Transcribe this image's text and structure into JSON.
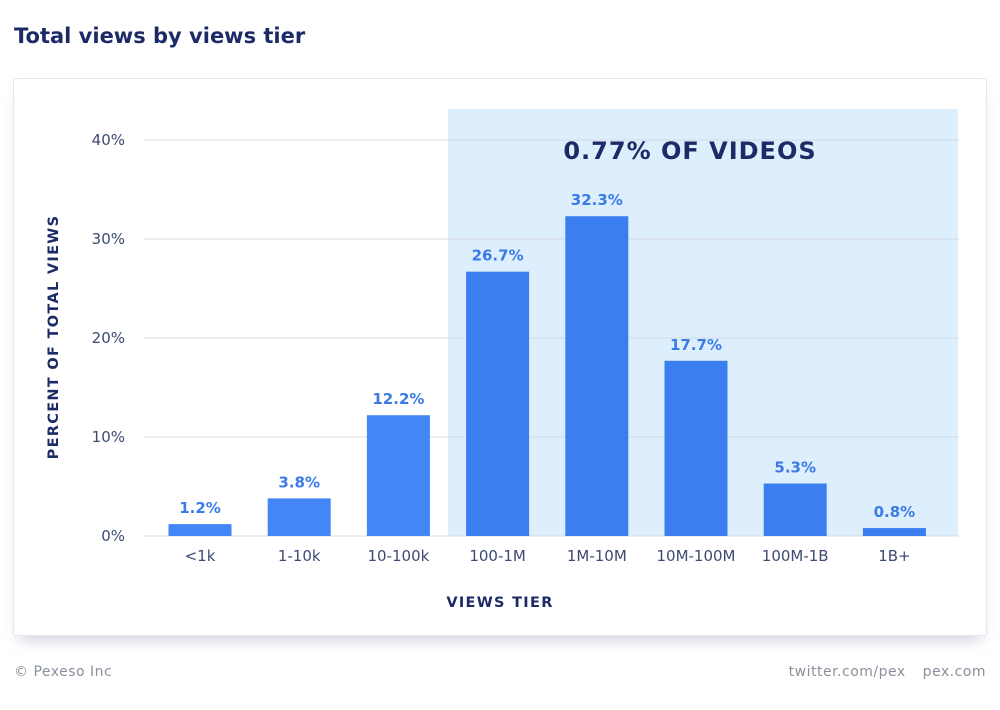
{
  "header": {
    "title": "Total views by views tier"
  },
  "footer": {
    "copyright": "© Pexeso Inc",
    "twitter": "twitter.com/pex",
    "site": "pex.com"
  },
  "colors": {
    "bar": "#4287f5",
    "bar_highlight": "#3b7ef0",
    "highlight_region": "#ddeefc",
    "data_label": "#3b7be8",
    "axis_text": "#3d4a73",
    "title_text": "#1c2a66",
    "grid": "#d7dbe3"
  },
  "chart_data": {
    "type": "bar",
    "categories": [
      "<1k",
      "1-10k",
      "10-100k",
      "100-1M",
      "1M-10M",
      "10M-100M",
      "100M-1B",
      "1B+"
    ],
    "values": [
      1.2,
      3.8,
      12.2,
      26.7,
      32.3,
      17.7,
      5.3,
      0.8
    ],
    "value_labels": [
      "1.2%",
      "3.8%",
      "12.2%",
      "26.7%",
      "32.3%",
      "17.7%",
      "5.3%",
      "0.8%"
    ],
    "xlabel": "VIEWS TIER",
    "ylabel": "PERCENT OF TOTAL VIEWS",
    "ylim": [
      0,
      40
    ],
    "yticks": [
      0,
      10,
      20,
      30,
      40
    ],
    "ytick_labels": [
      "0%",
      "10%",
      "20%",
      "30%",
      "40%"
    ],
    "grid": true,
    "highlight": {
      "categories": [
        "100-1M",
        "1M-10M",
        "10M-100M",
        "100M-1B",
        "1B+"
      ],
      "label": "0.77% OF VIDEOS"
    }
  }
}
